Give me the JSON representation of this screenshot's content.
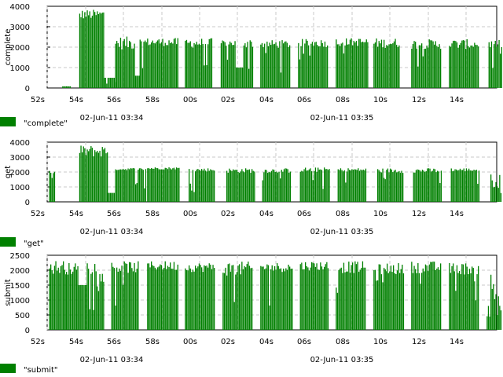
{
  "chart_data": [
    {
      "type": "bar",
      "title": "",
      "ylabel": "complete",
      "xlabel": "",
      "ylim": [
        0,
        4000
      ],
      "yticks": [
        "0",
        "1000",
        "2000",
        "3000",
        "4000"
      ],
      "xticks": [
        "52s",
        "54s",
        "56s",
        "58s",
        "00s",
        "02s",
        "04s",
        "06s",
        "08s",
        "10s",
        "12s",
        "14s"
      ],
      "date_labels": [
        "02-Jun-11 03:34",
        "02-Jun-11 03:35"
      ],
      "legend": "\"complete\"",
      "color": "#008000",
      "bursts": [
        {
          "start": 52.8,
          "end": 53.2,
          "level": 80
        },
        {
          "start": 53.7,
          "end": 55.0,
          "level": 3600,
          "peak": 3900
        },
        {
          "start": 55.0,
          "end": 55.6,
          "level": 500
        },
        {
          "start": 55.6,
          "end": 56.6,
          "level": 2200,
          "peak": 2600
        },
        {
          "start": 56.6,
          "end": 56.9,
          "level": 600
        },
        {
          "start": 56.9,
          "end": 58.9,
          "level": 2250,
          "peak": 2500
        },
        {
          "start": 59.3,
          "end": 60.7,
          "level": 2200,
          "peak": 2500
        },
        {
          "start": 61.2,
          "end": 62.0,
          "level": 2200,
          "peak": 2400
        },
        {
          "start": 62.0,
          "end": 62.4,
          "level": 1000
        },
        {
          "start": 62.4,
          "end": 62.9,
          "level": 2200,
          "peak": 2500
        },
        {
          "start": 63.3,
          "end": 64.9,
          "level": 2150,
          "peak": 2400
        },
        {
          "start": 65.3,
          "end": 66.9,
          "level": 2200,
          "peak": 2450
        },
        {
          "start": 67.3,
          "end": 69.0,
          "level": 2250,
          "peak": 2500
        },
        {
          "start": 69.3,
          "end": 70.7,
          "level": 2200,
          "peak": 2500
        },
        {
          "start": 71.3,
          "end": 72.9,
          "level": 2150,
          "peak": 2450
        },
        {
          "start": 73.3,
          "end": 74.9,
          "level": 2150,
          "peak": 2450
        },
        {
          "start": 75.4,
          "end": 76.1,
          "level": 2150,
          "peak": 2400
        }
      ]
    },
    {
      "type": "bar",
      "title": "",
      "ylabel": "get",
      "xlabel": "",
      "ylim": [
        0,
        4000
      ],
      "yticks": [
        "0",
        "1000",
        "2000",
        "3000",
        "4000"
      ],
      "xticks": [
        "52s",
        "54s",
        "56s",
        "58s",
        "00s",
        "02s",
        "04s",
        "06s",
        "08s",
        "10s",
        "12s",
        "14s"
      ],
      "date_labels": [
        "02-Jun-11 03:34",
        "02-Jun-11 03:35"
      ],
      "legend": "\"get\"",
      "color": "#008000",
      "bursts": [
        {
          "start": 52.1,
          "end": 52.4,
          "level": 1800,
          "peak": 2400
        },
        {
          "start": 53.7,
          "end": 55.2,
          "level": 3400,
          "peak": 3900
        },
        {
          "start": 55.2,
          "end": 55.6,
          "level": 600
        },
        {
          "start": 55.6,
          "end": 57.2,
          "level": 2200,
          "peak": 2300
        },
        {
          "start": 57.3,
          "end": 59.0,
          "level": 2250,
          "peak": 2350
        },
        {
          "start": 59.5,
          "end": 60.9,
          "level": 2150,
          "peak": 2300
        },
        {
          "start": 61.5,
          "end": 63.0,
          "level": 2100,
          "peak": 2300
        },
        {
          "start": 63.4,
          "end": 64.9,
          "level": 2100,
          "peak": 2300
        },
        {
          "start": 65.4,
          "end": 67.0,
          "level": 2150,
          "peak": 2350
        },
        {
          "start": 67.4,
          "end": 68.9,
          "level": 2150,
          "peak": 2300
        },
        {
          "start": 69.5,
          "end": 70.9,
          "level": 2100,
          "peak": 2300
        },
        {
          "start": 71.4,
          "end": 72.9,
          "level": 2100,
          "peak": 2300
        },
        {
          "start": 73.4,
          "end": 74.9,
          "level": 2150,
          "peak": 2300
        },
        {
          "start": 75.5,
          "end": 76.1,
          "level": 1400,
          "peak": 2000
        }
      ]
    },
    {
      "type": "bar",
      "title": "",
      "ylabel": "submit",
      "xlabel": "",
      "ylim": [
        0,
        2500
      ],
      "yticks": [
        "0",
        "500",
        "1000",
        "1500",
        "2000",
        "2500"
      ],
      "xticks": [
        "52s",
        "54s",
        "56s",
        "58s",
        "00s",
        "02s",
        "04s",
        "06s",
        "08s",
        "10s",
        "12s",
        "14s"
      ],
      "date_labels": [
        "02-Jun-11 03:34",
        "02-Jun-11 03:35"
      ],
      "legend": "\"submit\"",
      "color": "#008000",
      "bursts": [
        {
          "start": 52.1,
          "end": 53.0,
          "level": 2100,
          "peak": 2400
        },
        {
          "start": 53.0,
          "end": 53.6,
          "level": 2050,
          "peak": 2300
        },
        {
          "start": 53.6,
          "end": 54.1,
          "level": 1500
        },
        {
          "start": 54.1,
          "end": 55.0,
          "level": 2100,
          "peak": 2400
        },
        {
          "start": 55.4,
          "end": 56.8,
          "level": 2100,
          "peak": 2350
        },
        {
          "start": 57.3,
          "end": 58.9,
          "level": 2150,
          "peak": 2350
        },
        {
          "start": 59.3,
          "end": 60.9,
          "level": 2100,
          "peak": 2300
        },
        {
          "start": 61.3,
          "end": 62.9,
          "level": 2050,
          "peak": 2350
        },
        {
          "start": 63.3,
          "end": 65.0,
          "level": 2100,
          "peak": 2300
        },
        {
          "start": 65.4,
          "end": 66.9,
          "level": 2150,
          "peak": 2350
        },
        {
          "start": 67.3,
          "end": 68.9,
          "level": 2100,
          "peak": 2350
        },
        {
          "start": 69.3,
          "end": 70.0,
          "level": 1900,
          "peak": 2300
        },
        {
          "start": 70.0,
          "end": 70.9,
          "level": 2050,
          "peak": 2300
        },
        {
          "start": 71.3,
          "end": 72.9,
          "level": 2100,
          "peak": 2350
        },
        {
          "start": 73.3,
          "end": 74.9,
          "level": 2050,
          "peak": 2300
        },
        {
          "start": 75.3,
          "end": 76.1,
          "level": 1100,
          "peak": 2300
        }
      ]
    }
  ]
}
